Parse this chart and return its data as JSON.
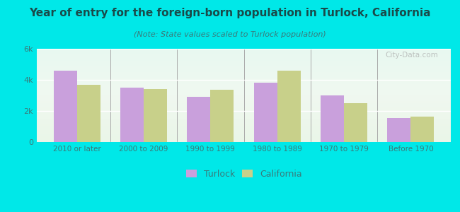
{
  "title": "Year of entry for the foreign-born population in Turlock, California",
  "subtitle": "(Note: State values scaled to Turlock population)",
  "categories": [
    "2010 or later",
    "2000 to 2009",
    "1990 to 1999",
    "1980 to 1989",
    "1970 to 1979",
    "Before 1970"
  ],
  "turlock_values": [
    4600,
    3500,
    2900,
    3800,
    3000,
    1550
  ],
  "california_values": [
    3700,
    3400,
    3350,
    4600,
    2500,
    1650
  ],
  "turlock_color": "#c9a0dc",
  "california_color": "#c8d08a",
  "bar_width": 0.35,
  "ylim": [
    0,
    6000
  ],
  "yticks": [
    0,
    2000,
    4000,
    6000
  ],
  "ytick_labels": [
    "0",
    "2k",
    "4k",
    "6k"
  ],
  "background_color": "#00e8e8",
  "title_fontsize": 11,
  "subtitle_fontsize": 8,
  "title_color": "#1a4a4a",
  "subtitle_color": "#3a7a7a",
  "tick_color": "#3a7a7a",
  "legend_labels": [
    "Turlock",
    "California"
  ],
  "watermark": "City-Data.com",
  "divider_color": "#aaaaaa"
}
